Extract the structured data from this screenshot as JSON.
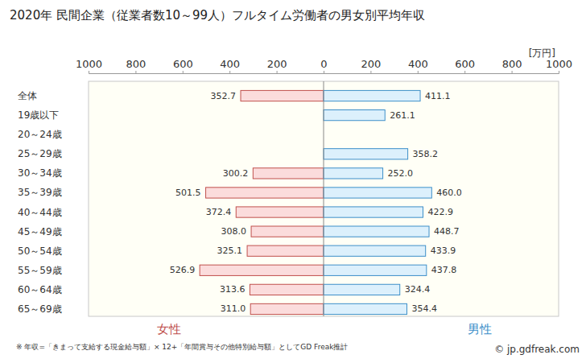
{
  "chart_data": {
    "type": "bar",
    "orientation": "horizontal",
    "title": "2020年 民間企業（従業者数10～99人）フルタイム労働者の男女別平均年収",
    "x_label": "[万円]",
    "annotations": [
      "※ 年収=「きまって支給する現金給与額」× 12+「年間賞与その他特別給与額」としてGD Freak推計",
      "© jp.gdfreak.com"
    ],
    "categories": [
      "全体",
      "19歳以下",
      "20～24歳",
      "25～29歳",
      "30～34歳",
      "35～39歳",
      "40～44歳",
      "45～49歳",
      "50～54歳",
      "55～59歳",
      "60～64歳",
      "65～69歳"
    ],
    "series": [
      {
        "name": "女性",
        "color": "#c0504d",
        "values": [
          352.7,
          null,
          null,
          null,
          300.2,
          501.5,
          372.4,
          308.0,
          325.1,
          526.9,
          313.6,
          311.0
        ],
        "value_labels": [
          "352.7",
          null,
          null,
          null,
          "300.2",
          "501.5",
          "372.4",
          "308.0",
          "325.1",
          "526.9",
          "313.6",
          "311.0"
        ]
      },
      {
        "name": "男性",
        "color": "#3d8fc9",
        "values": [
          411.1,
          261.1,
          null,
          358.2,
          252.0,
          460.0,
          422.9,
          448.7,
          433.9,
          437.8,
          324.4,
          354.4
        ],
        "value_labels": [
          "411.1",
          "261.1",
          null,
          "358.2",
          "252.0",
          "460.0",
          "422.9",
          "448.7",
          "433.9",
          "437.8",
          "324.4",
          "354.4"
        ]
      }
    ],
    "xlim": [
      0,
      1000
    ],
    "xticks": [
      0,
      200,
      400,
      600,
      800,
      1000
    ],
    "grid": false,
    "data_labels": true
  }
}
